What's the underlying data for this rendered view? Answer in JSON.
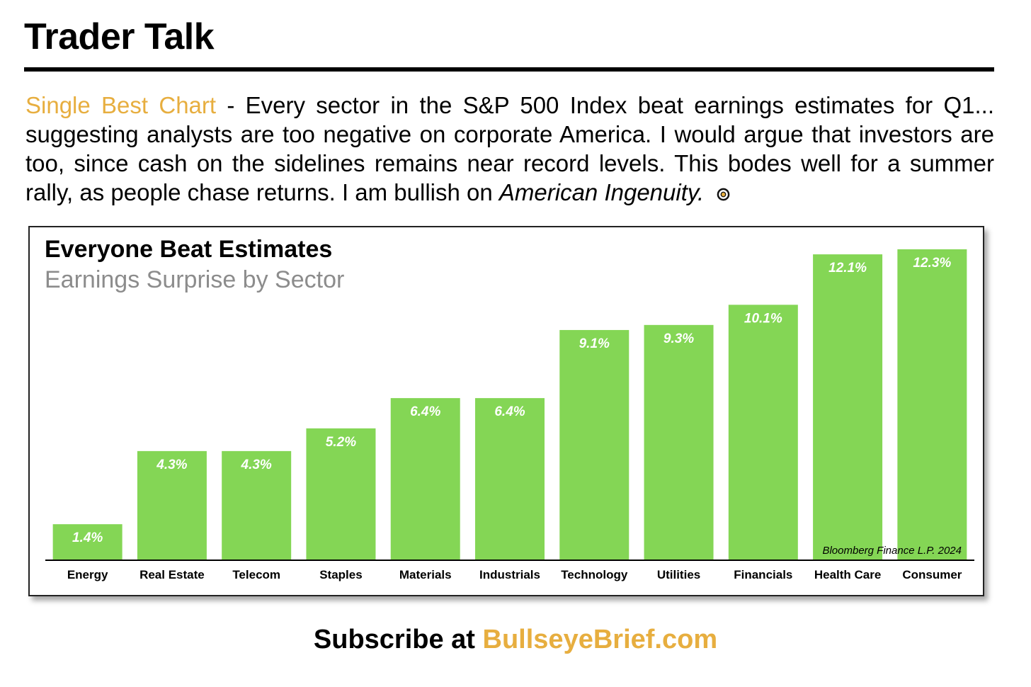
{
  "header": {
    "title": "Trader Talk"
  },
  "intro": {
    "highlight": "Single Best Chart",
    "text": " - Every sector in the S&P 500 Index beat earnings estimates for Q1... suggesting analysts are too negative on corporate America. I would argue that investors are too, since cash on the sidelines remains near record levels. This bodes well for a summer rally, as people chase returns. I am bullish on ",
    "emphasis": "American Ingenuity."
  },
  "icons": {
    "target": "bullseye-icon"
  },
  "colors": {
    "accent": "#e7ae3f",
    "bar": "#84d655",
    "bar_label": "#ffffff"
  },
  "chart_data": {
    "type": "bar",
    "title": "Everyone Beat Estimates",
    "subtitle": "Earnings Surprise by Sector",
    "categories": [
      "Energy",
      "Real Estate",
      "Telecom",
      "Staples",
      "Materials",
      "Industrials",
      "Technology",
      "Utilities",
      "Financials",
      "Health Care",
      "Consumer"
    ],
    "values": [
      1.4,
      4.3,
      4.3,
      5.2,
      6.4,
      6.4,
      9.1,
      9.3,
      10.1,
      12.1,
      12.3
    ],
    "value_labels": [
      "1.4%",
      "4.3%",
      "4.3%",
      "5.2%",
      "6.4%",
      "6.4%",
      "9.1%",
      "9.3%",
      "10.1%",
      "12.1%",
      "12.3%"
    ],
    "unit": "%",
    "xlabel": "",
    "ylabel": "",
    "ylim": [
      0,
      12.3
    ],
    "grid": false,
    "source": "Bloomberg Finance L.P. 2024"
  },
  "footer": {
    "prefix": "Subscribe at ",
    "site": "BullseyeBrief.com"
  }
}
